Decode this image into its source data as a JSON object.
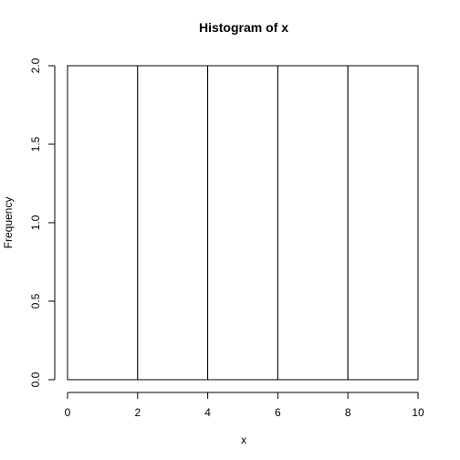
{
  "chart_data": {
    "type": "bar",
    "title": "Histogram of x",
    "xlabel": "x",
    "ylabel": "Frequency",
    "bins": [
      {
        "start": 0,
        "end": 2,
        "count": 2
      },
      {
        "start": 2,
        "end": 4,
        "count": 2
      },
      {
        "start": 4,
        "end": 6,
        "count": 2
      },
      {
        "start": 6,
        "end": 8,
        "count": 2
      },
      {
        "start": 8,
        "end": 10,
        "count": 2
      }
    ],
    "xlim": [
      0,
      10
    ],
    "ylim": [
      0,
      2
    ],
    "xticks": [
      0,
      2,
      4,
      6,
      8,
      10
    ],
    "xtick_labels": [
      "0",
      "2",
      "4",
      "6",
      "8",
      "10"
    ],
    "yticks": [
      0,
      0.5,
      1,
      1.5,
      2
    ],
    "ytick_labels": [
      "0.0",
      "0.5",
      "1.0",
      "1.5",
      "2.0"
    ],
    "grid": false,
    "legend": "none",
    "bar_fill": "#ffffff",
    "bar_stroke": "#000000"
  }
}
